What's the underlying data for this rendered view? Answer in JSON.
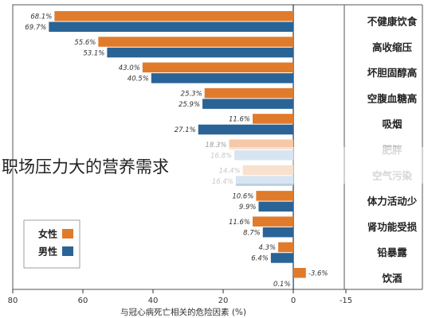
{
  "overlay_title": "职场压力大的营养需求",
  "chart_data": {
    "type": "bar",
    "orientation": "horizontal",
    "categories": [
      "不健康饮食",
      "高收缩压",
      "坏胆固醇高",
      "空腹血糖高",
      "吸烟",
      "肥胖",
      "空气污染",
      "体力活动少",
      "肾功能受损",
      "铅暴露",
      "饮酒"
    ],
    "series": [
      {
        "name": "女性",
        "color": "#e07b2c",
        "values": [
          68.1,
          55.6,
          43.0,
          25.3,
          11.6,
          18.3,
          14.4,
          10.6,
          11.6,
          4.3,
          -3.6
        ],
        "labels": [
          "68.1%",
          "55.6%",
          "43.0%",
          "25.3%",
          "11.6%",
          "18.3%",
          "14.4%",
          "10.6%",
          "11.6%",
          "4.3%",
          "-3.6%"
        ]
      },
      {
        "name": "男性",
        "color": "#2a6496",
        "values": [
          69.7,
          53.1,
          40.5,
          25.9,
          27.1,
          16.8,
          16.4,
          9.9,
          8.7,
          6.4,
          0.1
        ],
        "labels": [
          "69.7%",
          "53.1%",
          "40.5%",
          "25.9%",
          "27.1%",
          "16.8%",
          "16.4%",
          "9.9%",
          "8.7%",
          "6.4%",
          "0.1%"
        ]
      }
    ],
    "xlabel": "与冠心病死亡相关的危险因素 (%)",
    "ticks": [
      "80",
      "60",
      "40",
      "20",
      "0",
      "-15"
    ],
    "tick_values": [
      80,
      60,
      40,
      20,
      0,
      -15
    ],
    "xlim": [
      80,
      -15
    ],
    "legend_position": "bottom-left",
    "faded_category_colors": [
      "#f5c9a8",
      "#b8cfe3"
    ]
  }
}
